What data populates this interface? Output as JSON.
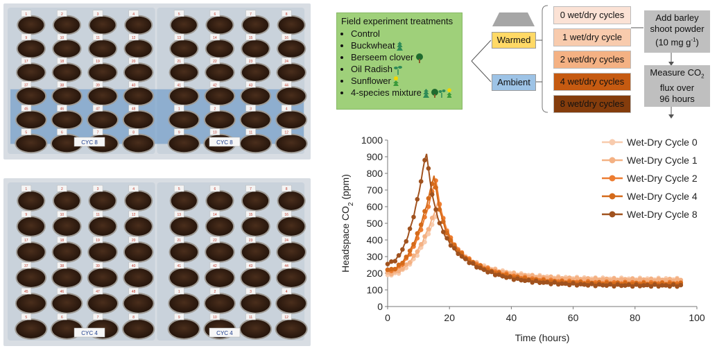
{
  "diagram": {
    "treatments_title": "Field experiment treatments",
    "treatments": [
      "Control",
      "Buckwheat",
      "Berseem clover",
      "Oil Radish",
      "Sunflower",
      "4-species mixture"
    ],
    "conditions": [
      "Warmed",
      "Ambient"
    ],
    "cycles": [
      "0 wet/dry cycles",
      "1 wet/dry cycle",
      "2 wet/dry cycles",
      "4 wet/dry cycles",
      "8 wet/dry cycles"
    ],
    "cycle_colors": [
      "#fbe2d5",
      "#f8cbad",
      "#f4b183",
      "#c55a11",
      "#843c0c"
    ],
    "warmed_color": "#ffd966",
    "ambient_color": "#9dc3e6",
    "add_line1": "Add barley",
    "add_line2": "shoot powder",
    "add_line3_prefix": "(10 mg g",
    "add_line3_sup": "-1",
    "add_line3_suffix": ")",
    "measure_line1_prefix": "Measure CO",
    "measure_line1_sub": "2",
    "measure_line2": "flux over",
    "measure_line3": "96 hours"
  },
  "photos": {
    "top_labels": [
      "CYC 8",
      "CYC 8"
    ],
    "bottom_labels": [
      "CYC 4",
      "CYC 4"
    ],
    "pot_numbers": [
      "1",
      "2",
      "3",
      "4",
      "5",
      "6",
      "7",
      "8",
      "9",
      "10",
      "11",
      "12",
      "13",
      "14",
      "15",
      "16",
      "17",
      "18",
      "19",
      "20",
      "21",
      "22",
      "23",
      "24",
      "37",
      "38",
      "39",
      "40",
      "41",
      "42",
      "43",
      "44",
      "45",
      "46",
      "47",
      "48"
    ]
  },
  "chart_data": {
    "type": "line",
    "xlabel": "Time (hours)",
    "ylabel_prefix": "Headspace CO",
    "ylabel_sub": "2",
    "ylabel_suffix": " (ppm)",
    "xlim": [
      0,
      100
    ],
    "ylim": [
      0,
      1000
    ],
    "xticks": [
      0,
      20,
      40,
      60,
      80,
      100
    ],
    "yticks": [
      0,
      100,
      200,
      300,
      400,
      500,
      600,
      700,
      800,
      900,
      1000
    ],
    "legend_position": "top-right",
    "series": [
      {
        "name": "Wet-Dry Cycle 0",
        "color": "#f8cbad",
        "peak_x": 17,
        "peak_y": 620,
        "start_y": 190,
        "x_end": 95,
        "y_end": 165
      },
      {
        "name": "Wet-Dry Cycle 1",
        "color": "#f4b183",
        "peak_x": 16.5,
        "peak_y": 640,
        "start_y": 200,
        "x_end": 95,
        "y_end": 160
      },
      {
        "name": "Wet-Dry Cycle 2",
        "color": "#ed7d31",
        "peak_x": 15.5,
        "peak_y": 770,
        "start_y": 215,
        "x_end": 95,
        "y_end": 140
      },
      {
        "name": "Wet-Dry Cycle 4",
        "color": "#d46a1a",
        "peak_x": 15,
        "peak_y": 790,
        "start_y": 220,
        "x_end": 95,
        "y_end": 135
      },
      {
        "name": "Wet-Dry Cycle 8",
        "color": "#a0521e",
        "peak_x": 12.5,
        "peak_y": 940,
        "start_y": 260,
        "x_end": 95,
        "y_end": 125
      }
    ]
  }
}
